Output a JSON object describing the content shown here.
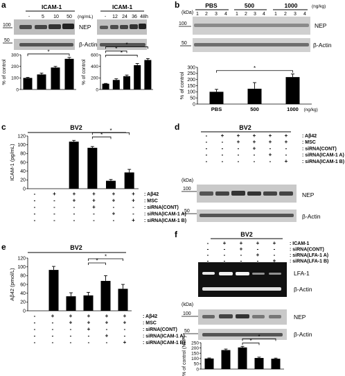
{
  "panel_letters": [
    "a",
    "b",
    "c",
    "d",
    "e",
    "f"
  ],
  "kda_label": "(kDa)",
  "markers": {
    "m100": "100",
    "m50": "50"
  },
  "protein": {
    "nep": "NEP",
    "actin": "β-Actin",
    "lfa1": "LFA-1"
  },
  "cell_line": "BV2",
  "row_labels": {
    "ab42": ": Aβ42",
    "msc": ": MSC",
    "sicont": ": siRNA(CONT)",
    "sicam_a": ": siRNA(ICAM-1 A)",
    "sicam_b": ": siRNA(ICAM-1 B)",
    "icam1": ": ICAM-1",
    "silfa_a": ": siRNA(LFA-1 A)",
    "silfa_b": ": siRNA(LFA-1 B)"
  },
  "panel_a": {
    "left_header": "ICAM-1",
    "right_header": "ICAM-1",
    "left_lanes": [
      "-",
      "5",
      "10",
      "50"
    ],
    "left_unit": "(ng/mL)",
    "right_lanes": [
      "-",
      "12",
      "24",
      "36",
      "48h"
    ],
    "ylabel": "% of control"
  },
  "panel_b": {
    "groups": [
      "PBS",
      "500",
      "1000"
    ],
    "unit": "(ng/kg)",
    "lanes": [
      "1",
      "2",
      "3",
      "4",
      "1",
      "2",
      "3",
      "4",
      "1",
      "2",
      "3",
      "4"
    ],
    "ylabel": "% of control"
  },
  "panel_c": {
    "ylabel": "ICAM-1 (pg/mL)"
  },
  "panel_e": {
    "ylabel": "Aβ42 (pmol/L)"
  },
  "panel_f": {
    "ylabel": "% of control (NEP)"
  },
  "star": "*",
  "chart_data": [
    {
      "id": "a-left",
      "type": "bar",
      "categories": [
        "-",
        "5",
        "10",
        "50"
      ],
      "values": [
        100,
        130,
        190,
        265
      ],
      "errors": [
        5,
        12,
        10,
        12
      ],
      "ylabel": "% of control",
      "ylim": [
        0,
        300
      ],
      "yticks": [
        0,
        100,
        200,
        300
      ],
      "significance": [
        {
          "from": 0,
          "to": 3
        }
      ]
    },
    {
      "id": "a-right",
      "type": "bar",
      "categories": [
        "-",
        "12",
        "24",
        "36",
        "48h"
      ],
      "values": [
        100,
        165,
        230,
        420,
        510
      ],
      "errors": [
        5,
        20,
        20,
        30,
        25
      ],
      "ylabel": "% of control",
      "ylim": [
        0,
        600
      ],
      "yticks": [
        0,
        200,
        400,
        600
      ],
      "significance": [
        {
          "from": 0,
          "to": 3
        },
        {
          "from": 0,
          "to": 2
        },
        {
          "from": 0,
          "to": 4
        }
      ]
    },
    {
      "id": "b",
      "type": "bar",
      "categories": [
        "PBS",
        "500",
        "1000"
      ],
      "values": [
        100,
        125,
        220
      ],
      "errors": [
        20,
        50,
        25
      ],
      "ylabel": "% of control",
      "ylim": [
        0,
        300
      ],
      "yticks": [
        0,
        50,
        100,
        150,
        200,
        250,
        300
      ],
      "significance": [
        {
          "from": 0,
          "to": 2
        }
      ]
    },
    {
      "id": "c",
      "type": "bar",
      "categories": [
        "1",
        "2",
        "3",
        "4",
        "5",
        "6"
      ],
      "values": [
        0,
        0,
        107,
        93,
        18,
        37
      ],
      "errors": [
        0,
        0,
        3,
        3,
        3,
        7
      ],
      "ylabel": "ICAM-1 (pg/mL)",
      "ylim": [
        0,
        120
      ],
      "yticks": [
        0,
        20,
        40,
        60,
        80,
        100,
        120
      ],
      "significance": [
        {
          "from": 3,
          "to": 4
        },
        {
          "from": 3,
          "to": 5
        }
      ]
    },
    {
      "id": "e",
      "type": "bar",
      "categories": [
        "1",
        "2",
        "3",
        "4",
        "5",
        "6"
      ],
      "values": [
        0,
        93,
        33,
        35,
        68,
        50
      ],
      "errors": [
        0,
        8,
        8,
        7,
        12,
        10
      ],
      "ylabel": "Aβ42 (pmol/L)",
      "ylim": [
        0,
        120
      ],
      "yticks": [
        0,
        20,
        40,
        60,
        80,
        100,
        120
      ],
      "significance": [
        {
          "from": 3,
          "to": 4
        },
        {
          "from": 3,
          "to": 5
        }
      ]
    },
    {
      "id": "f",
      "type": "bar",
      "categories": [
        "1",
        "2",
        "3",
        "4",
        "5"
      ],
      "values": [
        100,
        180,
        205,
        105,
        98
      ],
      "errors": [
        5,
        10,
        10,
        8,
        6
      ],
      "ylabel": "% of control (NEP)",
      "ylim": [
        0,
        250
      ],
      "yticks": [
        0,
        50,
        100,
        150,
        200,
        250
      ],
      "significance": [
        {
          "from": 2,
          "to": 3
        },
        {
          "from": 2,
          "to": 4
        }
      ]
    }
  ],
  "treatment_tables": {
    "c": [
      [
        "-",
        "+",
        "+",
        "+",
        "+",
        "+"
      ],
      [
        "-",
        "-",
        "+",
        "+",
        "+",
        "+"
      ],
      [
        "-",
        "-",
        "-",
        "+",
        "-",
        "-"
      ],
      [
        "-",
        "-",
        "-",
        "-",
        "+",
        "-"
      ],
      [
        "-",
        "-",
        "-",
        "-",
        "-",
        "+"
      ]
    ],
    "d": [
      [
        "-",
        "+",
        "+",
        "+",
        "+",
        "+"
      ],
      [
        "-",
        "-",
        "+",
        "+",
        "+",
        "+"
      ],
      [
        "-",
        "-",
        "-",
        "+",
        "-",
        "-"
      ],
      [
        "-",
        "-",
        "-",
        "-",
        "+",
        "-"
      ],
      [
        "-",
        "-",
        "-",
        "-",
        "-",
        "+"
      ]
    ],
    "e": [
      [
        "-",
        "+",
        "+",
        "+",
        "+",
        "+"
      ],
      [
        "-",
        "-",
        "+",
        "+",
        "+",
        "+"
      ],
      [
        "-",
        "-",
        "-",
        "+",
        "-",
        "-"
      ],
      [
        "-",
        "-",
        "-",
        "-",
        "+",
        "-"
      ],
      [
        "-",
        "-",
        "-",
        "-",
        "-",
        "+"
      ]
    ],
    "f": [
      [
        "-",
        "+",
        "+",
        "+",
        "+"
      ],
      [
        "-",
        "-",
        "+",
        "-",
        "-"
      ],
      [
        "-",
        "-",
        "-",
        "+",
        "-"
      ],
      [
        "-",
        "-",
        "-",
        "-",
        "+"
      ]
    ]
  }
}
